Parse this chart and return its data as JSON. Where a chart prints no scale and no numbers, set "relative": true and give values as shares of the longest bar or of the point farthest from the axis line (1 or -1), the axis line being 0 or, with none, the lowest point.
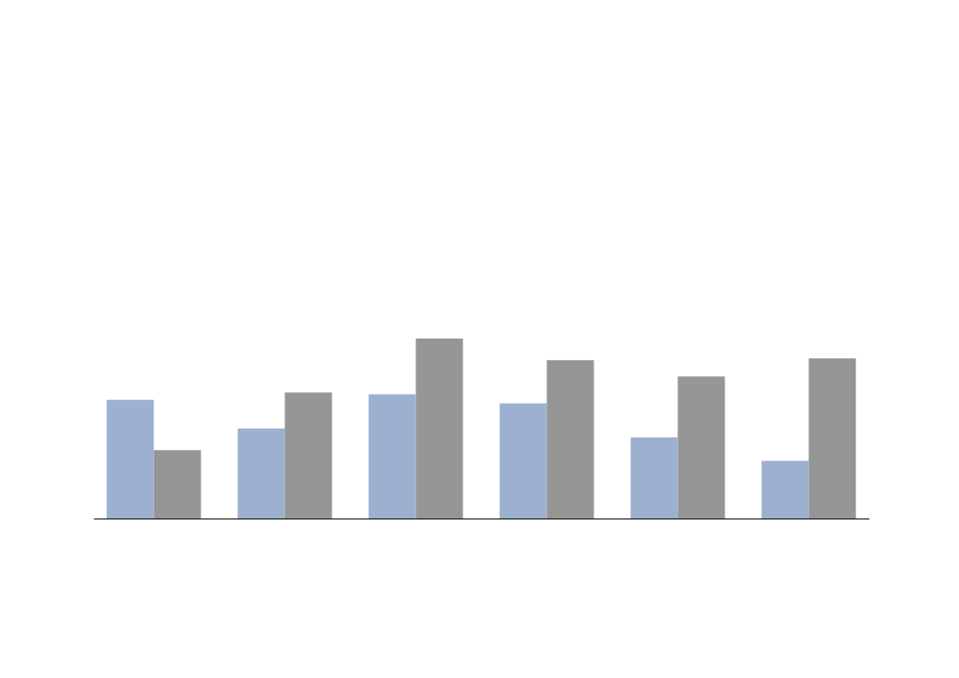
{
  "chart_data": {
    "type": "bar",
    "relative": true,
    "categories": [
      null,
      null,
      null,
      null,
      null,
      null
    ],
    "series": [
      {
        "color": "#9db0cf",
        "values": [
          0.66,
          0.5,
          0.69,
          0.64,
          0.45,
          0.32
        ]
      },
      {
        "color": "#969696",
        "values": [
          0.38,
          0.7,
          1,
          0.88,
          0.79,
          0.89
        ]
      }
    ],
    "grid": false
  }
}
